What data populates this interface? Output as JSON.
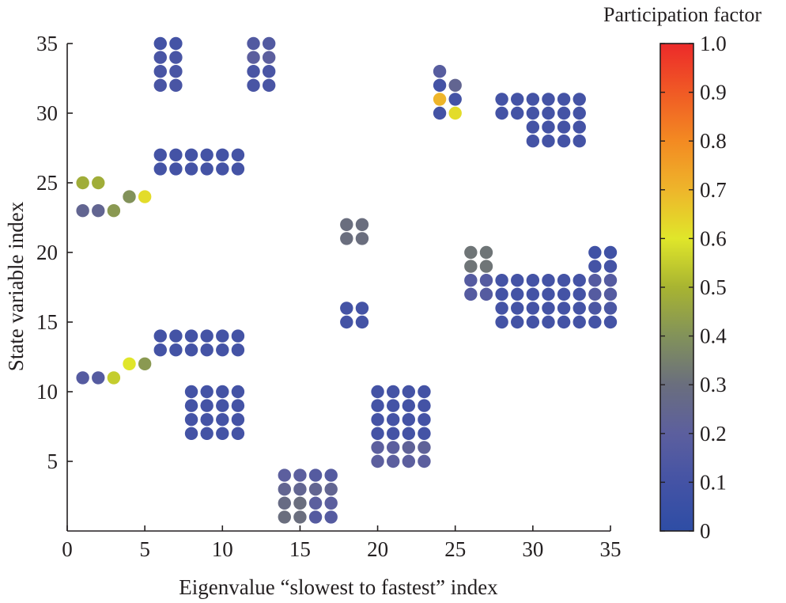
{
  "chart_data": {
    "type": "scatter",
    "xlabel": "Eigenvalue “slowest to fastest” index",
    "ylabel": "State variable index",
    "xlim": [
      0,
      35
    ],
    "ylim": [
      0,
      35
    ],
    "x_ticks": [
      0,
      5,
      10,
      15,
      20,
      25,
      30,
      35
    ],
    "y_ticks": [
      5,
      10,
      15,
      20,
      25,
      30,
      35
    ],
    "grid": false,
    "color_scale": {
      "title": "Participation factor",
      "min": 0,
      "max": 1,
      "ticks": [
        0,
        0.1,
        0.2,
        0.3,
        0.4,
        0.5,
        0.6,
        0.7,
        0.8,
        0.9,
        1.0
      ],
      "tick_labels": [
        "0",
        "0.1",
        "0.2",
        "0.3",
        "0.4",
        "0.5",
        "0.6",
        "0.7",
        "0.8",
        "0.9",
        "1.0"
      ],
      "colormap": "blue-gray-olive-yellow-orange-red",
      "colors": [
        "#2e4da5",
        "#4453a5",
        "#5c5f9e",
        "#6a6e7e",
        "#82925a",
        "#a8b431",
        "#e0e62a",
        "#eeb52b",
        "#f38a22",
        "#f05a25",
        "#ec2a2a"
      ]
    },
    "points": [
      {
        "x": 1,
        "y": 25,
        "v": 0.48
      },
      {
        "x": 2,
        "y": 25,
        "v": 0.48
      },
      {
        "x": 1,
        "y": 23,
        "v": 0.24
      },
      {
        "x": 2,
        "y": 23,
        "v": 0.24
      },
      {
        "x": 3,
        "y": 23,
        "v": 0.42
      },
      {
        "x": 4,
        "y": 24,
        "v": 0.4
      },
      {
        "x": 5,
        "y": 24,
        "v": 0.62
      },
      {
        "x": 1,
        "y": 11,
        "v": 0.17
      },
      {
        "x": 2,
        "y": 11,
        "v": 0.17
      },
      {
        "x": 3,
        "y": 11,
        "v": 0.55
      },
      {
        "x": 4,
        "y": 12,
        "v": 0.6
      },
      {
        "x": 5,
        "y": 12,
        "v": 0.42
      },
      {
        "x": 6,
        "y": 35,
        "v": 0.1
      },
      {
        "x": 7,
        "y": 35,
        "v": 0.1
      },
      {
        "x": 6,
        "y": 34,
        "v": 0.12
      },
      {
        "x": 7,
        "y": 34,
        "v": 0.12
      },
      {
        "x": 6,
        "y": 33,
        "v": 0.12
      },
      {
        "x": 7,
        "y": 33,
        "v": 0.12
      },
      {
        "x": 6,
        "y": 32,
        "v": 0.12
      },
      {
        "x": 7,
        "y": 32,
        "v": 0.12
      },
      {
        "x": 12,
        "y": 35,
        "v": 0.16
      },
      {
        "x": 13,
        "y": 35,
        "v": 0.16
      },
      {
        "x": 12,
        "y": 34,
        "v": 0.2
      },
      {
        "x": 13,
        "y": 34,
        "v": 0.2
      },
      {
        "x": 12,
        "y": 33,
        "v": 0.12
      },
      {
        "x": 13,
        "y": 33,
        "v": 0.12
      },
      {
        "x": 12,
        "y": 32,
        "v": 0.12
      },
      {
        "x": 13,
        "y": 32,
        "v": 0.12
      },
      {
        "x": 6,
        "y": 27,
        "v": 0.1
      },
      {
        "x": 7,
        "y": 27,
        "v": 0.1
      },
      {
        "x": 8,
        "y": 27,
        "v": 0.1
      },
      {
        "x": 9,
        "y": 27,
        "v": 0.1
      },
      {
        "x": 10,
        "y": 27,
        "v": 0.1
      },
      {
        "x": 11,
        "y": 27,
        "v": 0.1
      },
      {
        "x": 6,
        "y": 26,
        "v": 0.1
      },
      {
        "x": 7,
        "y": 26,
        "v": 0.1
      },
      {
        "x": 8,
        "y": 26,
        "v": 0.1
      },
      {
        "x": 9,
        "y": 26,
        "v": 0.1
      },
      {
        "x": 10,
        "y": 26,
        "v": 0.1
      },
      {
        "x": 11,
        "y": 26,
        "v": 0.1
      },
      {
        "x": 6,
        "y": 14,
        "v": 0.1
      },
      {
        "x": 7,
        "y": 14,
        "v": 0.1
      },
      {
        "x": 8,
        "y": 14,
        "v": 0.1
      },
      {
        "x": 9,
        "y": 14,
        "v": 0.1
      },
      {
        "x": 10,
        "y": 14,
        "v": 0.1
      },
      {
        "x": 11,
        "y": 14,
        "v": 0.1
      },
      {
        "x": 6,
        "y": 13,
        "v": 0.1
      },
      {
        "x": 7,
        "y": 13,
        "v": 0.1
      },
      {
        "x": 8,
        "y": 13,
        "v": 0.1
      },
      {
        "x": 9,
        "y": 13,
        "v": 0.1
      },
      {
        "x": 10,
        "y": 13,
        "v": 0.1
      },
      {
        "x": 11,
        "y": 13,
        "v": 0.1
      },
      {
        "x": 8,
        "y": 10,
        "v": 0.1
      },
      {
        "x": 9,
        "y": 10,
        "v": 0.1
      },
      {
        "x": 10,
        "y": 10,
        "v": 0.1
      },
      {
        "x": 11,
        "y": 10,
        "v": 0.1
      },
      {
        "x": 8,
        "y": 9,
        "v": 0.1
      },
      {
        "x": 9,
        "y": 9,
        "v": 0.1
      },
      {
        "x": 10,
        "y": 9,
        "v": 0.1
      },
      {
        "x": 11,
        "y": 9,
        "v": 0.1
      },
      {
        "x": 8,
        "y": 8,
        "v": 0.1
      },
      {
        "x": 9,
        "y": 8,
        "v": 0.1
      },
      {
        "x": 10,
        "y": 8,
        "v": 0.1
      },
      {
        "x": 11,
        "y": 8,
        "v": 0.1
      },
      {
        "x": 8,
        "y": 7,
        "v": 0.1
      },
      {
        "x": 9,
        "y": 7,
        "v": 0.1
      },
      {
        "x": 10,
        "y": 7,
        "v": 0.1
      },
      {
        "x": 11,
        "y": 7,
        "v": 0.1
      },
      {
        "x": 14,
        "y": 4,
        "v": 0.2
      },
      {
        "x": 15,
        "y": 4,
        "v": 0.2
      },
      {
        "x": 16,
        "y": 4,
        "v": 0.17
      },
      {
        "x": 17,
        "y": 4,
        "v": 0.17
      },
      {
        "x": 14,
        "y": 3,
        "v": 0.24
      },
      {
        "x": 15,
        "y": 3,
        "v": 0.24
      },
      {
        "x": 16,
        "y": 3,
        "v": 0.24
      },
      {
        "x": 17,
        "y": 3,
        "v": 0.24
      },
      {
        "x": 14,
        "y": 2,
        "v": 0.28
      },
      {
        "x": 15,
        "y": 2,
        "v": 0.3
      },
      {
        "x": 16,
        "y": 2,
        "v": 0.2
      },
      {
        "x": 17,
        "y": 2,
        "v": 0.2
      },
      {
        "x": 14,
        "y": 1,
        "v": 0.3
      },
      {
        "x": 15,
        "y": 1,
        "v": 0.3
      },
      {
        "x": 16,
        "y": 1,
        "v": 0.17
      },
      {
        "x": 17,
        "y": 1,
        "v": 0.17
      },
      {
        "x": 18,
        "y": 22,
        "v": 0.3
      },
      {
        "x": 19,
        "y": 22,
        "v": 0.3
      },
      {
        "x": 18,
        "y": 21,
        "v": 0.3
      },
      {
        "x": 19,
        "y": 21,
        "v": 0.3
      },
      {
        "x": 18,
        "y": 16,
        "v": 0.1
      },
      {
        "x": 19,
        "y": 16,
        "v": 0.1
      },
      {
        "x": 18,
        "y": 15,
        "v": 0.1
      },
      {
        "x": 19,
        "y": 15,
        "v": 0.1
      },
      {
        "x": 20,
        "y": 10,
        "v": 0.1
      },
      {
        "x": 21,
        "y": 10,
        "v": 0.1
      },
      {
        "x": 22,
        "y": 10,
        "v": 0.1
      },
      {
        "x": 23,
        "y": 10,
        "v": 0.1
      },
      {
        "x": 20,
        "y": 9,
        "v": 0.1
      },
      {
        "x": 21,
        "y": 9,
        "v": 0.1
      },
      {
        "x": 22,
        "y": 9,
        "v": 0.1
      },
      {
        "x": 23,
        "y": 9,
        "v": 0.1
      },
      {
        "x": 20,
        "y": 8,
        "v": 0.1
      },
      {
        "x": 21,
        "y": 8,
        "v": 0.1
      },
      {
        "x": 22,
        "y": 8,
        "v": 0.1
      },
      {
        "x": 23,
        "y": 8,
        "v": 0.1
      },
      {
        "x": 20,
        "y": 7,
        "v": 0.1
      },
      {
        "x": 21,
        "y": 7,
        "v": 0.1
      },
      {
        "x": 22,
        "y": 7,
        "v": 0.1
      },
      {
        "x": 23,
        "y": 7,
        "v": 0.1
      },
      {
        "x": 20,
        "y": 6,
        "v": 0.2
      },
      {
        "x": 21,
        "y": 6,
        "v": 0.2
      },
      {
        "x": 22,
        "y": 6,
        "v": 0.22
      },
      {
        "x": 23,
        "y": 6,
        "v": 0.22
      },
      {
        "x": 20,
        "y": 5,
        "v": 0.2
      },
      {
        "x": 21,
        "y": 5,
        "v": 0.2
      },
      {
        "x": 22,
        "y": 5,
        "v": 0.2
      },
      {
        "x": 23,
        "y": 5,
        "v": 0.2
      },
      {
        "x": 24,
        "y": 33,
        "v": 0.18
      },
      {
        "x": 24,
        "y": 32,
        "v": 0.1
      },
      {
        "x": 25,
        "y": 32,
        "v": 0.24
      },
      {
        "x": 24,
        "y": 31,
        "v": 0.7
      },
      {
        "x": 25,
        "y": 31,
        "v": 0.1
      },
      {
        "x": 24,
        "y": 30,
        "v": 0.1
      },
      {
        "x": 25,
        "y": 30,
        "v": 0.62
      },
      {
        "x": 26,
        "y": 20,
        "v": 0.32
      },
      {
        "x": 27,
        "y": 20,
        "v": 0.32
      },
      {
        "x": 26,
        "y": 19,
        "v": 0.32
      },
      {
        "x": 27,
        "y": 19,
        "v": 0.32
      },
      {
        "x": 26,
        "y": 18,
        "v": 0.17
      },
      {
        "x": 27,
        "y": 18,
        "v": 0.17
      },
      {
        "x": 26,
        "y": 17,
        "v": 0.17
      },
      {
        "x": 27,
        "y": 17,
        "v": 0.17
      },
      {
        "x": 28,
        "y": 31,
        "v": 0.1
      },
      {
        "x": 29,
        "y": 31,
        "v": 0.1
      },
      {
        "x": 30,
        "y": 31,
        "v": 0.1
      },
      {
        "x": 31,
        "y": 31,
        "v": 0.1
      },
      {
        "x": 32,
        "y": 31,
        "v": 0.1
      },
      {
        "x": 33,
        "y": 31,
        "v": 0.1
      },
      {
        "x": 28,
        "y": 30,
        "v": 0.1
      },
      {
        "x": 29,
        "y": 30,
        "v": 0.1
      },
      {
        "x": 30,
        "y": 30,
        "v": 0.1
      },
      {
        "x": 31,
        "y": 30,
        "v": 0.1
      },
      {
        "x": 32,
        "y": 30,
        "v": 0.1
      },
      {
        "x": 33,
        "y": 30,
        "v": 0.1
      },
      {
        "x": 30,
        "y": 29,
        "v": 0.1
      },
      {
        "x": 31,
        "y": 29,
        "v": 0.1
      },
      {
        "x": 32,
        "y": 29,
        "v": 0.1
      },
      {
        "x": 33,
        "y": 29,
        "v": 0.1
      },
      {
        "x": 30,
        "y": 28,
        "v": 0.1
      },
      {
        "x": 31,
        "y": 28,
        "v": 0.1
      },
      {
        "x": 32,
        "y": 28,
        "v": 0.1
      },
      {
        "x": 33,
        "y": 28,
        "v": 0.1
      },
      {
        "x": 34,
        "y": 20,
        "v": 0.08
      },
      {
        "x": 35,
        "y": 20,
        "v": 0.08
      },
      {
        "x": 34,
        "y": 19,
        "v": 0.1
      },
      {
        "x": 35,
        "y": 19,
        "v": 0.1
      },
      {
        "x": 28,
        "y": 18,
        "v": 0.1
      },
      {
        "x": 29,
        "y": 18,
        "v": 0.1
      },
      {
        "x": 30,
        "y": 18,
        "v": 0.1
      },
      {
        "x": 31,
        "y": 18,
        "v": 0.1
      },
      {
        "x": 32,
        "y": 18,
        "v": 0.1
      },
      {
        "x": 33,
        "y": 18,
        "v": 0.1
      },
      {
        "x": 34,
        "y": 18,
        "v": 0.17
      },
      {
        "x": 35,
        "y": 18,
        "v": 0.17
      },
      {
        "x": 28,
        "y": 17,
        "v": 0.1
      },
      {
        "x": 29,
        "y": 17,
        "v": 0.1
      },
      {
        "x": 30,
        "y": 17,
        "v": 0.1
      },
      {
        "x": 31,
        "y": 17,
        "v": 0.1
      },
      {
        "x": 32,
        "y": 17,
        "v": 0.1
      },
      {
        "x": 33,
        "y": 17,
        "v": 0.1
      },
      {
        "x": 34,
        "y": 17,
        "v": 0.17
      },
      {
        "x": 35,
        "y": 17,
        "v": 0.17
      },
      {
        "x": 28,
        "y": 16,
        "v": 0.1
      },
      {
        "x": 29,
        "y": 16,
        "v": 0.1
      },
      {
        "x": 30,
        "y": 16,
        "v": 0.1
      },
      {
        "x": 31,
        "y": 16,
        "v": 0.1
      },
      {
        "x": 32,
        "y": 16,
        "v": 0.1
      },
      {
        "x": 33,
        "y": 16,
        "v": 0.1
      },
      {
        "x": 34,
        "y": 16,
        "v": 0.13
      },
      {
        "x": 35,
        "y": 16,
        "v": 0.13
      },
      {
        "x": 28,
        "y": 15,
        "v": 0.1
      },
      {
        "x": 29,
        "y": 15,
        "v": 0.1
      },
      {
        "x": 30,
        "y": 15,
        "v": 0.1
      },
      {
        "x": 31,
        "y": 15,
        "v": 0.1
      },
      {
        "x": 32,
        "y": 15,
        "v": 0.1
      },
      {
        "x": 33,
        "y": 15,
        "v": 0.1
      },
      {
        "x": 34,
        "y": 15,
        "v": 0.1
      },
      {
        "x": 35,
        "y": 15,
        "v": 0.1
      }
    ]
  }
}
